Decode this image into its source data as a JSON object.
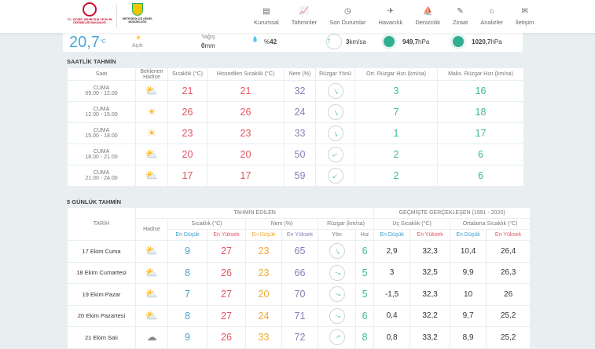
{
  "header": {
    "logo_ministry": "T.C. ÇEVRE, ŞEHİRCİLİK VE İKLİM DEĞİŞİKLİĞİ BAKANLIĞI",
    "logo_mgm": "METEOROLOJİ GENEL MÜDÜRLÜĞÜ",
    "nav": [
      {
        "label": "Kurumsal",
        "icon": "document-icon"
      },
      {
        "label": "Tahminler",
        "icon": "chart-icon"
      },
      {
        "label": "Son Durumlar",
        "icon": "clock-icon"
      },
      {
        "label": "Havacılık",
        "icon": "airplane-icon"
      },
      {
        "label": "Denizcilik",
        "icon": "ship-icon"
      },
      {
        "label": "Ziraat",
        "icon": "leaf-icon"
      },
      {
        "label": "Analizler",
        "icon": "analysis-icon"
      },
      {
        "label": "İletişim",
        "icon": "mail-icon"
      }
    ]
  },
  "current": {
    "temp": "20,7",
    "unit": "°C",
    "condition": "Açık",
    "rain_label": "Yağış",
    "rain_value": "0",
    "rain_unit": "mm",
    "humidity_prefix": "%",
    "humidity": "42",
    "wind_value": "3",
    "wind_unit": "km/sa",
    "pressure1": "949,7",
    "pressure2": "1020,7",
    "pressure_unit": "hPa"
  },
  "hourly": {
    "title": "SAATLİK TAHMİN",
    "headers": [
      "Saat",
      "Beklenen Hadise",
      "Sıcaklık (°C)",
      "Hissedilen Sıcaklık (°C)",
      "Nem (%)",
      "Rüzgar Yönü",
      "Ort. Rüzgar Hızı (km/sa)",
      "Maks. Rüzgar Hızı (km/sa)"
    ],
    "rows": [
      {
        "day": "CUMA",
        "time": "09.00 - 12.00",
        "icon": "partly-cloudy",
        "temp": "21",
        "feels": "21",
        "hum": "32",
        "wind_deg": 150,
        "avg": "3",
        "max": "16"
      },
      {
        "day": "CUMA",
        "time": "12.00 - 15.00",
        "icon": "sunny",
        "temp": "26",
        "feels": "26",
        "hum": "24",
        "wind_deg": 150,
        "avg": "7",
        "max": "18"
      },
      {
        "day": "CUMA",
        "time": "15.00 - 18.00",
        "icon": "sunny",
        "temp": "23",
        "feels": "23",
        "hum": "33",
        "wind_deg": 160,
        "avg": "1",
        "max": "17"
      },
      {
        "day": "CUMA",
        "time": "18.00 - 21.00",
        "icon": "partly-cloudy",
        "temp": "20",
        "feels": "20",
        "hum": "50",
        "wind_deg": 240,
        "avg": "2",
        "max": "6"
      },
      {
        "day": "CUMA",
        "time": "21.00 - 24.00",
        "icon": "partly-cloudy",
        "temp": "17",
        "feels": "17",
        "hum": "59",
        "wind_deg": 225,
        "avg": "2",
        "max": "6"
      }
    ]
  },
  "daily": {
    "title": "5 GÜNLÜK TAHMİN",
    "h_date": "TARİH",
    "h_forecast": "TAHMİN EDİLEN",
    "h_past": "GEÇMİŞTE GERÇEKLEŞEN (1991 - 2020)",
    "h_event": "Hadise",
    "h_temp": "Sıcaklık (°C)",
    "h_hum": "Nem (%)",
    "h_wind": "Rüzgar (km/sa)",
    "h_extreme": "Uç Sıcaklık (°C)",
    "h_avg": "Ortalama Sıcaklık (°C)",
    "low": "En Düşük",
    "high": "En Yüksek",
    "dir": "Yön",
    "speed": "Hız",
    "rows": [
      {
        "date": "17 Ekim Cuma",
        "icon": "partly-cloudy",
        "tlo": "9",
        "thi": "27",
        "hlo": "23",
        "hhi": "65",
        "wind_deg": 150,
        "spd": "6",
        "elo": "2,9",
        "ehi": "32,3",
        "alo": "10,4",
        "ahi": "26,4"
      },
      {
        "date": "18 Ekim Cumartesi",
        "icon": "partly-cloudy",
        "tlo": "8",
        "thi": "26",
        "hlo": "23",
        "hhi": "66",
        "wind_deg": 110,
        "spd": "5",
        "elo": "3",
        "ehi": "32,5",
        "alo": "9,9",
        "ahi": "26,3"
      },
      {
        "date": "19 Ekim Pazar",
        "icon": "partly-cloudy",
        "tlo": "7",
        "thi": "27",
        "hlo": "20",
        "hhi": "70",
        "wind_deg": 110,
        "spd": "5",
        "elo": "-1,5",
        "ehi": "32,3",
        "alo": "10",
        "ahi": "26"
      },
      {
        "date": "20 Ekim Pazartesi",
        "icon": "partly-cloudy",
        "tlo": "8",
        "thi": "27",
        "hlo": "24",
        "hhi": "71",
        "wind_deg": 110,
        "spd": "6",
        "elo": "0,4",
        "ehi": "32,2",
        "alo": "9,7",
        "ahi": "25,2"
      },
      {
        "date": "21 Ekim Salı",
        "icon": "cloudy",
        "tlo": "9",
        "thi": "26",
        "hlo": "33",
        "hhi": "72",
        "wind_deg": 60,
        "spd": "8",
        "elo": "0,8",
        "ehi": "33,2",
        "alo": "8,9",
        "ahi": "25,2"
      }
    ]
  }
}
